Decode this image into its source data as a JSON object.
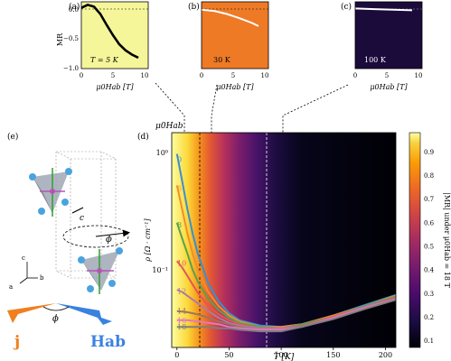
{
  "panels": {
    "a": {
      "label": "(a)",
      "temp": "T = 5 K",
      "bg": "#f5f59a",
      "curve_color": "#000000"
    },
    "b": {
      "label": "(b)",
      "temp": "30 K",
      "bg": "#ee7a26",
      "curve_color": "#ffffff"
    },
    "c": {
      "label": "(c)",
      "temp": "100 K",
      "bg": "#1b0b3b",
      "curve_color": "#ffffff"
    },
    "d": {
      "label": "(d)"
    },
    "e": {
      "label": "(e)"
    }
  },
  "small_axes": {
    "ylabel": "MR",
    "xlabel": "μ0Hab [T]",
    "xticks": [
      "0",
      "5",
      "10"
    ],
    "yticks": [
      "0.0",
      "−0.5",
      "−1.0"
    ]
  },
  "main_axes": {
    "xlabel": "T [K]",
    "ylabel": "ρ [Ω · cm⁻¹]",
    "xticks": [
      "0",
      "50",
      "100",
      "150",
      "200"
    ],
    "ytick_major": [
      "10⁰",
      "10⁻¹"
    ],
    "field_header": "μ0Hab",
    "field_labels": [
      "0",
      "6",
      "8",
      "10",
      "12",
      "14",
      "16",
      "18"
    ],
    "curve_colors": [
      "#3b8fcf",
      "#f28e2b",
      "#59a14f",
      "#e15759",
      "#b07aa1",
      "#9c755f",
      "#e377c2",
      "#7f7f7f"
    ]
  },
  "colorbar": {
    "label": "|MR| under μ0Hab = 18 T",
    "ticks": [
      "0.9",
      "0.8",
      "0.7",
      "0.6",
      "0.5",
      "0.4",
      "0.3",
      "0.2",
      "0.1"
    ]
  },
  "crystal": {
    "j_label": "j",
    "H_label": "Hab",
    "phi": "ϕ",
    "theta": "c",
    "axes": [
      "c",
      "a",
      "b"
    ],
    "j_color": "#f07f1e",
    "H_color": "#3a82e0"
  },
  "chart_data": [
    {
      "type": "line",
      "title": "",
      "xlabel": "μ0Hab [T]",
      "ylabel": "MR",
      "xlim": [
        0,
        10
      ],
      "ylim": [
        -1.0,
        0.1
      ],
      "series": [
        {
          "values": [
            [
              0,
              0.0
            ],
            [
              1,
              0.05
            ],
            [
              2,
              0.02
            ],
            [
              3,
              -0.1
            ],
            [
              4,
              -0.28
            ],
            [
              5,
              -0.45
            ],
            [
              6,
              -0.6
            ],
            [
              7,
              -0.7
            ],
            [
              8,
              -0.77
            ],
            [
              9,
              -0.82
            ]
          ]
        }
      ]
    },
    {
      "type": "line",
      "title": "",
      "xlabel": "μ0Hab [T]",
      "ylim": [
        -1.0,
        0.1
      ],
      "series": [
        {
          "values": [
            [
              0,
              -0.03
            ],
            [
              2,
              -0.05
            ],
            [
              4,
              -0.1
            ],
            [
              6,
              -0.17
            ],
            [
              8,
              -0.25
            ],
            [
              9,
              -0.3
            ]
          ]
        }
      ]
    },
    {
      "type": "line",
      "title": "",
      "xlabel": "μ0Hab [T]",
      "ylim": [
        -1.0,
        0.1
      ],
      "series": [
        {
          "values": [
            [
              0,
              -0.01
            ],
            [
              3,
              -0.02
            ],
            [
              6,
              -0.03
            ],
            [
              9,
              -0.04
            ]
          ]
        }
      ]
    },
    {
      "type": "line",
      "title": "",
      "xlabel": "T [K]",
      "ylabel": "ρ [Ω · cm⁻¹]",
      "xlim": [
        -5,
        210
      ],
      "ylim_log": [
        0.025,
        1.5
      ],
      "series": [
        {
          "name": "0",
          "values": [
            [
              0,
              1.0
            ],
            [
              5,
              0.6
            ],
            [
              10,
              0.35
            ],
            [
              15,
              0.22
            ],
            [
              20,
              0.15
            ],
            [
              30,
              0.085
            ],
            [
              40,
              0.06
            ],
            [
              50,
              0.048
            ],
            [
              60,
              0.042
            ],
            [
              80,
              0.038
            ],
            [
              100,
              0.037
            ],
            [
              120,
              0.039
            ],
            [
              150,
              0.046
            ],
            [
              180,
              0.056
            ],
            [
              210,
              0.068
            ]
          ]
        },
        {
          "name": "6",
          "values": [
            [
              0,
              0.55
            ],
            [
              5,
              0.35
            ],
            [
              10,
              0.22
            ],
            [
              15,
              0.15
            ],
            [
              20,
              0.11
            ],
            [
              30,
              0.072
            ],
            [
              40,
              0.055
            ],
            [
              50,
              0.046
            ],
            [
              60,
              0.041
            ],
            [
              80,
              0.037
            ],
            [
              100,
              0.037
            ],
            [
              120,
              0.039
            ],
            [
              150,
              0.046
            ],
            [
              180,
              0.055
            ],
            [
              210,
              0.067
            ]
          ]
        },
        {
          "name": "8",
          "values": [
            [
              0,
              0.27
            ],
            [
              5,
              0.2
            ],
            [
              10,
              0.15
            ],
            [
              15,
              0.11
            ],
            [
              20,
              0.088
            ],
            [
              30,
              0.063
            ],
            [
              40,
              0.051
            ],
            [
              50,
              0.044
            ],
            [
              60,
              0.04
            ],
            [
              80,
              0.037
            ],
            [
              100,
              0.036
            ],
            [
              120,
              0.039
            ],
            [
              150,
              0.045
            ],
            [
              180,
              0.055
            ],
            [
              210,
              0.066
            ]
          ]
        },
        {
          "name": "10",
          "values": [
            [
              0,
              0.13
            ],
            [
              5,
              0.115
            ],
            [
              10,
              0.098
            ],
            [
              15,
              0.083
            ],
            [
              20,
              0.071
            ],
            [
              30,
              0.055
            ],
            [
              40,
              0.047
            ],
            [
              50,
              0.042
            ],
            [
              60,
              0.039
            ],
            [
              80,
              0.036
            ],
            [
              100,
              0.036
            ],
            [
              120,
              0.038
            ],
            [
              150,
              0.045
            ],
            [
              180,
              0.054
            ],
            [
              210,
              0.065
            ]
          ]
        },
        {
          "name": "12",
          "values": [
            [
              0,
              0.075
            ],
            [
              5,
              0.072
            ],
            [
              10,
              0.067
            ],
            [
              20,
              0.058
            ],
            [
              30,
              0.05
            ],
            [
              40,
              0.044
            ],
            [
              50,
              0.04
            ],
            [
              60,
              0.038
            ],
            [
              80,
              0.036
            ],
            [
              100,
              0.036
            ],
            [
              120,
              0.038
            ],
            [
              150,
              0.044
            ],
            [
              180,
              0.054
            ],
            [
              210,
              0.064
            ]
          ]
        },
        {
          "name": "14",
          "values": [
            [
              0,
              0.05
            ],
            [
              10,
              0.049
            ],
            [
              20,
              0.047
            ],
            [
              30,
              0.044
            ],
            [
              40,
              0.041
            ],
            [
              50,
              0.039
            ],
            [
              60,
              0.037
            ],
            [
              80,
              0.035
            ],
            [
              100,
              0.035
            ],
            [
              120,
              0.038
            ],
            [
              150,
              0.044
            ],
            [
              180,
              0.053
            ],
            [
              210,
              0.064
            ]
          ]
        },
        {
          "name": "16",
          "values": [
            [
              0,
              0.042
            ],
            [
              10,
              0.042
            ],
            [
              20,
              0.041
            ],
            [
              30,
              0.04
            ],
            [
              40,
              0.039
            ],
            [
              50,
              0.037
            ],
            [
              60,
              0.036
            ],
            [
              80,
              0.035
            ],
            [
              100,
              0.035
            ],
            [
              120,
              0.037
            ],
            [
              150,
              0.044
            ],
            [
              180,
              0.053
            ],
            [
              210,
              0.063
            ]
          ]
        },
        {
          "name": "18",
          "values": [
            [
              0,
              0.037
            ],
            [
              10,
              0.037
            ],
            [
              20,
              0.037
            ],
            [
              30,
              0.037
            ],
            [
              40,
              0.036
            ],
            [
              50,
              0.036
            ],
            [
              60,
              0.035
            ],
            [
              80,
              0.034
            ],
            [
              100,
              0.034
            ],
            [
              120,
              0.037
            ],
            [
              150,
              0.043
            ],
            [
              180,
              0.052
            ],
            [
              210,
              0.062
            ]
          ]
        }
      ]
    }
  ]
}
